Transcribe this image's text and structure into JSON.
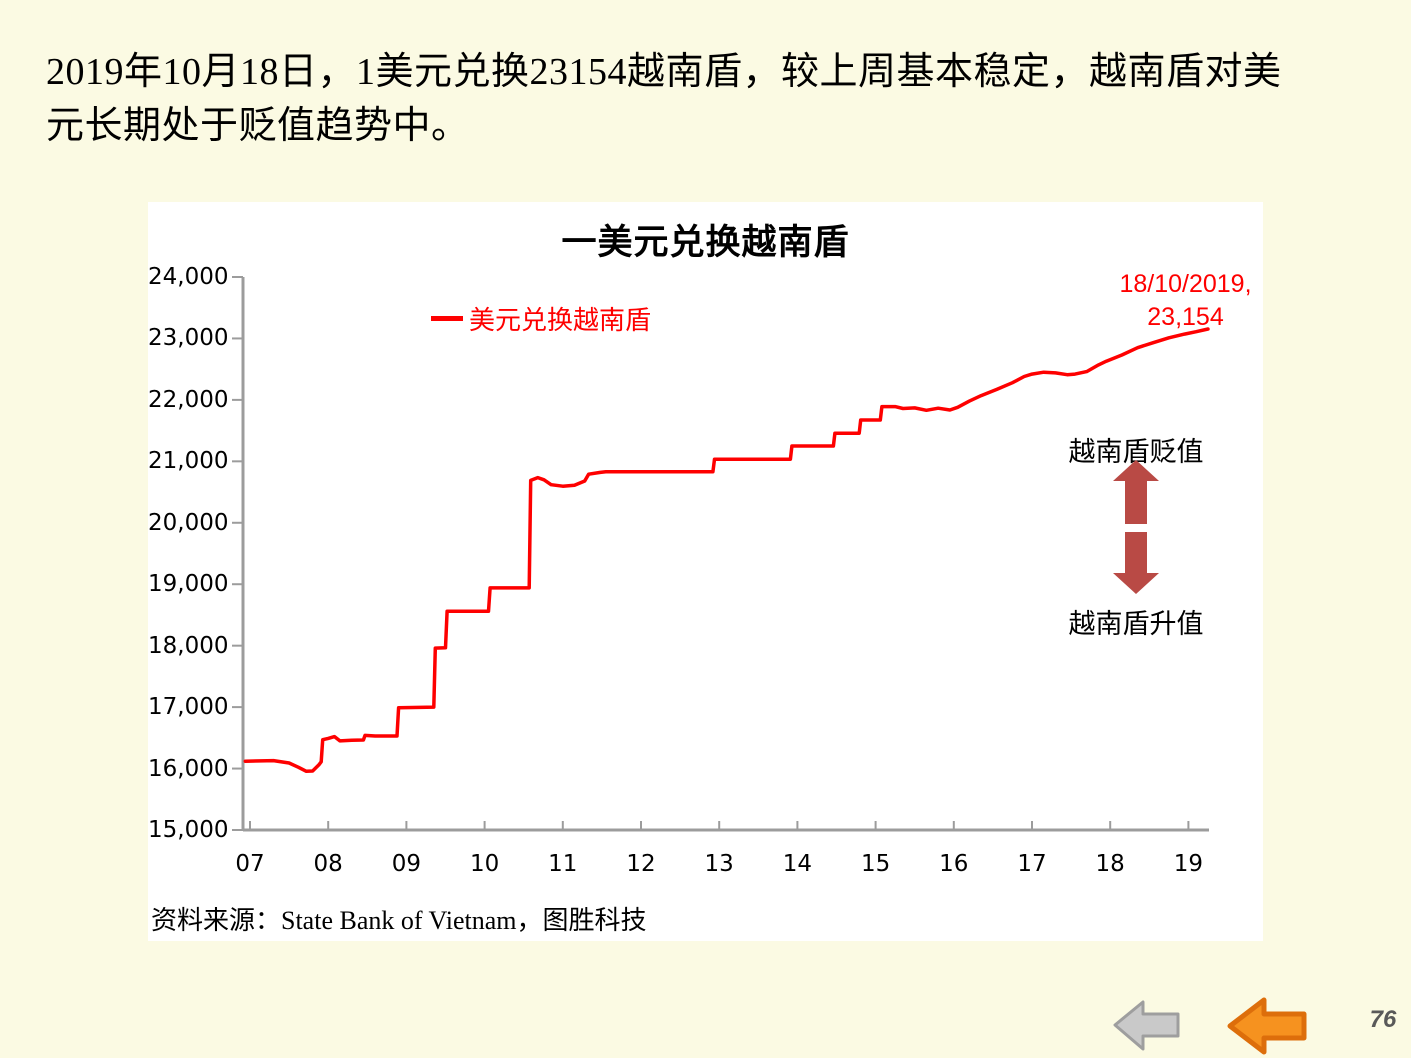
{
  "slide": {
    "headline_lines": [
      "2019年10月18日，1美元兑换23154越南盾，较上周基本稳定，越南盾对美",
      "元长期处于贬值趋势中。"
    ],
    "page_number": "76"
  },
  "chart": {
    "title": "一美元兑换越南盾",
    "legend": "美元兑换越南盾",
    "annotation": {
      "line1": "18/10/2019,",
      "line2": "23,154"
    },
    "depreciation_label": "越南盾贬值",
    "appreciation_label": "越南盾升值",
    "source": "资料来源：State Bank of Vietnam，图胜科技"
  },
  "colors": {
    "bg": "#FBFAE3",
    "card": "#FFFFFF",
    "ink": "#000000",
    "line_red": "#FE0000",
    "axis_gray": "#9C9C9C",
    "brick": "#B94A45",
    "nav_gray_fill": "#C9C9C9",
    "nav_gray_stroke": "#9E9E9E",
    "nav_orange_fill": "#F6921F",
    "nav_orange_stroke": "#DD6E0B",
    "page_num": "#595959"
  },
  "chart_data": {
    "type": "line",
    "title": "一美元兑换越南盾",
    "xlabel": "",
    "ylabel": "",
    "x_range": [
      2007,
      2019.35
    ],
    "y_range": [
      15000,
      24000
    ],
    "grid": false,
    "legend_position": "top-left-inside",
    "x_ticks": [
      {
        "v": 2007,
        "label": "07"
      },
      {
        "v": 2008,
        "label": "08"
      },
      {
        "v": 2009,
        "label": "09"
      },
      {
        "v": 2010,
        "label": "10"
      },
      {
        "v": 2011,
        "label": "11"
      },
      {
        "v": 2012,
        "label": "12"
      },
      {
        "v": 2013,
        "label": "13"
      },
      {
        "v": 2014,
        "label": "14"
      },
      {
        "v": 2015,
        "label": "15"
      },
      {
        "v": 2016,
        "label": "16"
      },
      {
        "v": 2017,
        "label": "17"
      },
      {
        "v": 2018,
        "label": "18"
      },
      {
        "v": 2019,
        "label": "19"
      }
    ],
    "y_ticks": [
      {
        "v": 24000,
        "label": "24,000"
      },
      {
        "v": 23000,
        "label": "23,000"
      },
      {
        "v": 22000,
        "label": "22,000"
      },
      {
        "v": 21000,
        "label": "21,000"
      },
      {
        "v": 20000,
        "label": "20,000"
      },
      {
        "v": 19000,
        "label": "19,000"
      },
      {
        "v": 18000,
        "label": "18,000"
      },
      {
        "v": 17000,
        "label": "17,000"
      },
      {
        "v": 16000,
        "label": "16,000"
      },
      {
        "v": 15000,
        "label": "15,000"
      }
    ],
    "series": [
      {
        "name": "美元兑换越南盾",
        "points": [
          [
            2006.94,
            16120
          ],
          [
            2007.3,
            16130
          ],
          [
            2007.5,
            16090
          ],
          [
            2007.62,
            16020
          ],
          [
            2007.72,
            15955
          ],
          [
            2007.8,
            15960
          ],
          [
            2007.88,
            16060
          ],
          [
            2007.91,
            16110
          ],
          [
            2007.93,
            16470
          ],
          [
            2008.0,
            16490
          ],
          [
            2008.08,
            16520
          ],
          [
            2008.15,
            16450
          ],
          [
            2008.3,
            16460
          ],
          [
            2008.45,
            16465
          ],
          [
            2008.47,
            16540
          ],
          [
            2008.6,
            16530
          ],
          [
            2008.88,
            16530
          ],
          [
            2008.9,
            16990
          ],
          [
            2009.35,
            17000
          ],
          [
            2009.37,
            17960
          ],
          [
            2009.5,
            17965
          ],
          [
            2009.52,
            18560
          ],
          [
            2010.05,
            18560
          ],
          [
            2010.07,
            18940
          ],
          [
            2010.57,
            18940
          ],
          [
            2010.59,
            20690
          ],
          [
            2010.68,
            20735
          ],
          [
            2010.76,
            20700
          ],
          [
            2010.85,
            20620
          ],
          [
            2011.0,
            20595
          ],
          [
            2011.15,
            20610
          ],
          [
            2011.28,
            20680
          ],
          [
            2011.33,
            20790
          ],
          [
            2011.48,
            20820
          ],
          [
            2011.55,
            20830
          ],
          [
            2012.92,
            20830
          ],
          [
            2012.94,
            21035
          ],
          [
            2013.91,
            21035
          ],
          [
            2013.93,
            21250
          ],
          [
            2014.46,
            21250
          ],
          [
            2014.48,
            21458
          ],
          [
            2014.79,
            21458
          ],
          [
            2014.81,
            21673
          ],
          [
            2015.06,
            21673
          ],
          [
            2015.08,
            21890
          ],
          [
            2015.25,
            21890
          ],
          [
            2015.35,
            21860
          ],
          [
            2015.5,
            21870
          ],
          [
            2015.65,
            21830
          ],
          [
            2015.8,
            21865
          ],
          [
            2015.95,
            21835
          ],
          [
            2016.05,
            21880
          ],
          [
            2016.2,
            21980
          ],
          [
            2016.35,
            22070
          ],
          [
            2016.55,
            22170
          ],
          [
            2016.75,
            22280
          ],
          [
            2016.9,
            22380
          ],
          [
            2017.0,
            22420
          ],
          [
            2017.15,
            22450
          ],
          [
            2017.3,
            22440
          ],
          [
            2017.45,
            22410
          ],
          [
            2017.55,
            22420
          ],
          [
            2017.7,
            22460
          ],
          [
            2017.85,
            22570
          ],
          [
            2017.95,
            22630
          ],
          [
            2018.15,
            22730
          ],
          [
            2018.35,
            22850
          ],
          [
            2018.55,
            22930
          ],
          [
            2018.75,
            23010
          ],
          [
            2018.95,
            23070
          ],
          [
            2019.1,
            23110
          ],
          [
            2019.25,
            23154
          ]
        ],
        "last_point": {
          "date": "18/10/2019",
          "value": 23154
        }
      }
    ]
  }
}
